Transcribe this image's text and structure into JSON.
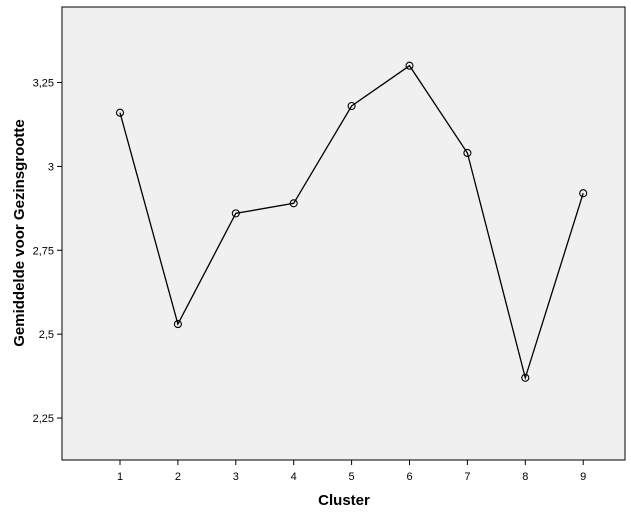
{
  "chart_data": {
    "type": "line",
    "title": "",
    "xlabel": "Cluster",
    "ylabel": "Gemiddelde voor Gezinsgrootte",
    "x": [
      "1",
      "2",
      "3",
      "4",
      "5",
      "6",
      "7",
      "8",
      "9"
    ],
    "y": [
      3.16,
      2.53,
      2.86,
      2.89,
      3.18,
      3.3,
      3.04,
      2.37,
      2.92
    ],
    "ylim": [
      2.125,
      3.475
    ],
    "y_ticks": [
      2.25,
      2.5,
      2.75,
      3,
      3.25
    ],
    "y_tick_labels": [
      "2,25",
      "2,5",
      "2,75",
      "3",
      "3,25"
    ],
    "grid": false,
    "legend": "none",
    "marker": "open-circle",
    "colors": {
      "plot_background": "#f0f0f0",
      "line": "#000000",
      "axis": "#000000",
      "page_background": "#ffffff"
    }
  }
}
